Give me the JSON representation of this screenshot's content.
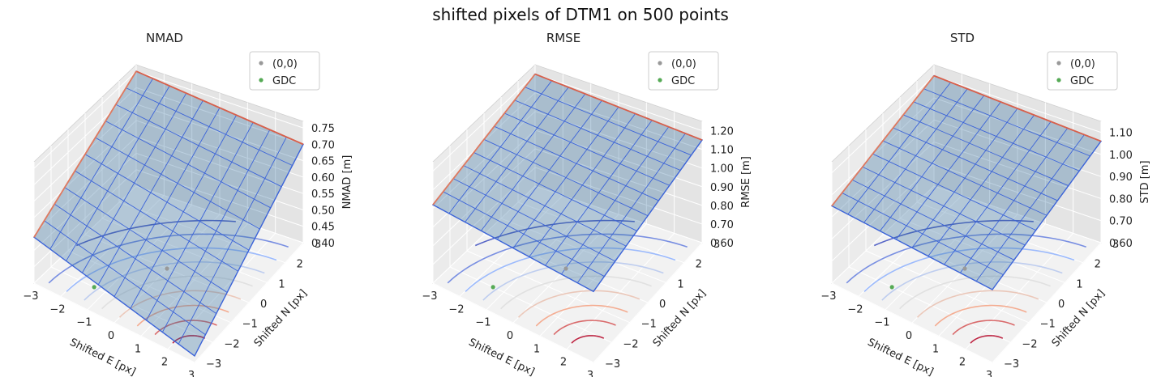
{
  "figure": {
    "suptitle": "shifted pixels of DTM1 on 500 points"
  },
  "chart_data": [
    {
      "type": "surface3d",
      "title": "NMAD",
      "xlabel": "Shifted E [px]",
      "ylabel": "Shifted N [px]",
      "zlabel": "NMAD [m]",
      "x_ticks": [
        -3,
        -2,
        -1,
        0,
        1,
        2,
        3
      ],
      "y_ticks": [
        -3,
        -2,
        -1,
        0,
        1,
        2,
        3
      ],
      "z_ticks": [
        0.4,
        0.45,
        0.5,
        0.55,
        0.6,
        0.65,
        0.7,
        0.75
      ],
      "xlim": [
        -3,
        3
      ],
      "ylim": [
        -3,
        3
      ],
      "zlim": [
        0.4,
        0.77
      ],
      "legend": {
        "placement": "top-right",
        "entries": [
          {
            "label": "(0,0)",
            "color": "#999999"
          },
          {
            "label": "GDC",
            "color": "#55aa55"
          }
        ]
      },
      "points": [
        {
          "label": "(0,0)",
          "x": 0,
          "y": 0
        },
        {
          "label": "GDC",
          "x": -1.4,
          "y": -2.0
        }
      ],
      "surface_corner_values": {
        "E-3_N-3": 0.54,
        "E3_N-3": 0.42,
        "E-3_N3": 0.75,
        "E3_N3": 0.7
      },
      "contour_colormap": "coolwarm",
      "surface_color": "#2f6ea0"
    },
    {
      "type": "surface3d",
      "title": "RMSE",
      "xlabel": "Shifted E [px]",
      "ylabel": "Shifted N [px]",
      "zlabel": "RMSE [m]",
      "x_ticks": [
        -3,
        -2,
        -1,
        0,
        1,
        2,
        3
      ],
      "y_ticks": [
        -3,
        -2,
        -1,
        0,
        1,
        2,
        3
      ],
      "z_ticks": [
        0.6,
        0.7,
        0.8,
        0.9,
        1.0,
        1.1,
        1.2
      ],
      "xlim": [
        -3,
        3
      ],
      "ylim": [
        -3,
        3
      ],
      "zlim": [
        0.6,
        1.25
      ],
      "legend": {
        "placement": "top-right",
        "entries": [
          {
            "label": "(0,0)",
            "color": "#999999"
          },
          {
            "label": "GDC",
            "color": "#55aa55"
          }
        ]
      },
      "points": [
        {
          "label": "(0,0)",
          "x": 0,
          "y": 0
        },
        {
          "label": "GDC",
          "x": -1.4,
          "y": -2.0
        }
      ],
      "surface_corner_values": {
        "E-3_N-3": 1.02,
        "E3_N-3": 0.98,
        "E-3_N3": 1.2,
        "E3_N3": 1.15
      },
      "contour_colormap": "coolwarm",
      "surface_color": "#2f6ea0"
    },
    {
      "type": "surface3d",
      "title": "STD",
      "xlabel": "Shifted E [px]",
      "ylabel": "Shifted N [px]",
      "zlabel": "STD [m]",
      "x_ticks": [
        -3,
        -2,
        -1,
        0,
        1,
        2,
        3
      ],
      "y_ticks": [
        -3,
        -2,
        -1,
        0,
        1,
        2,
        3
      ],
      "z_ticks": [
        0.6,
        0.7,
        0.8,
        0.9,
        1.0,
        1.1
      ],
      "xlim": [
        -3,
        3
      ],
      "ylim": [
        -3,
        3
      ],
      "zlim": [
        0.6,
        1.15
      ],
      "legend": {
        "placement": "top-right",
        "entries": [
          {
            "label": "(0,0)",
            "color": "#999999"
          },
          {
            "label": "GDC",
            "color": "#55aa55"
          }
        ]
      },
      "points": [
        {
          "label": "(0,0)",
          "x": 0,
          "y": 0
        },
        {
          "label": "GDC",
          "x": -1.4,
          "y": -2.0
        }
      ],
      "surface_corner_values": {
        "E-3_N-3": 0.95,
        "E3_N-3": 0.93,
        "E-3_N3": 1.1,
        "E3_N3": 1.06
      },
      "contour_colormap": "coolwarm",
      "surface_color": "#2f6ea0"
    }
  ]
}
